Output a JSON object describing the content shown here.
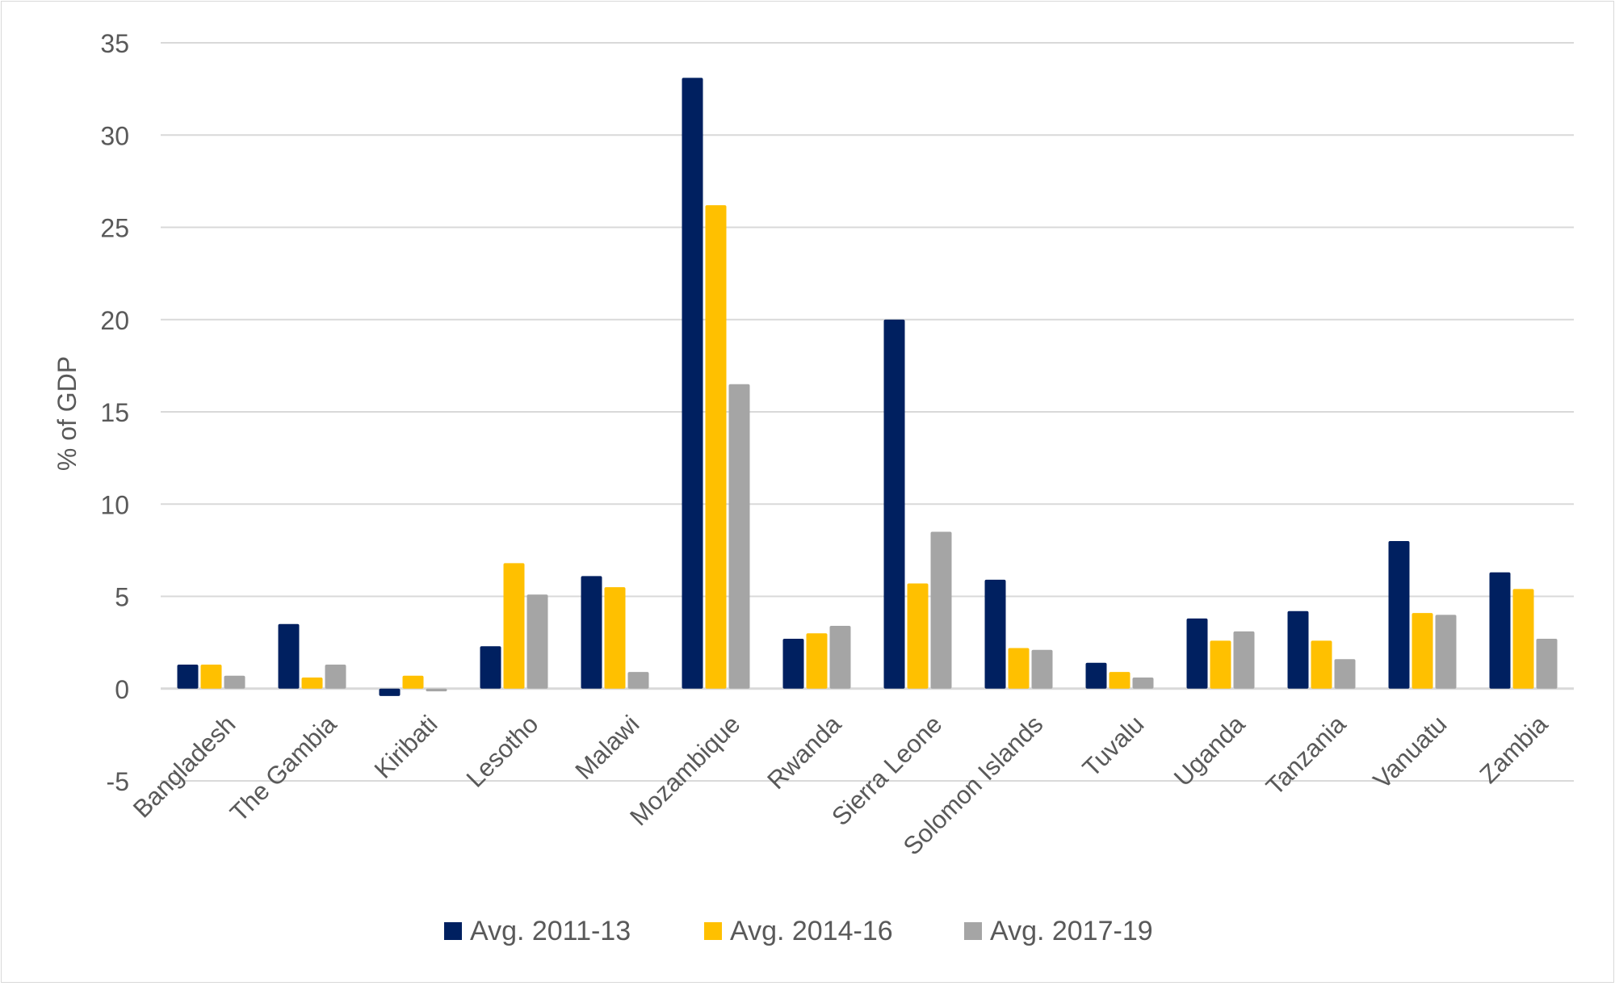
{
  "chart_data": {
    "type": "bar",
    "title": "",
    "xlabel": "",
    "ylabel": "% of GDP",
    "ylim": [
      -5,
      35
    ],
    "yticks": [
      -5,
      0,
      5,
      10,
      15,
      20,
      25,
      30,
      35
    ],
    "grid": true,
    "legend_position": "bottom",
    "categories": [
      "Bangladesh",
      "The Gambia",
      "Kiribati",
      "Lesotho",
      "Malawi",
      "Mozambique",
      "Rwanda",
      "Sierra Leone",
      "Solomon Islands",
      "Tuvalu",
      "Uganda",
      "Tanzania",
      "Vanuatu",
      "Zambia"
    ],
    "series": [
      {
        "name": "Avg. 2011-13",
        "color": "#002060",
        "values": [
          1.3,
          3.5,
          -0.4,
          2.3,
          6.1,
          33.1,
          2.7,
          20.0,
          5.9,
          1.4,
          3.8,
          4.2,
          8.0,
          6.3
        ]
      },
      {
        "name": "Avg. 2014-16",
        "color": "#FFC000",
        "values": [
          1.3,
          0.6,
          0.7,
          6.8,
          5.5,
          26.2,
          3.0,
          5.7,
          2.2,
          0.9,
          2.6,
          2.6,
          4.1,
          5.4
        ]
      },
      {
        "name": "Avg. 2017-19",
        "color": "#A5A5A5",
        "values": [
          0.7,
          1.3,
          -0.15,
          5.1,
          0.9,
          16.5,
          3.4,
          8.5,
          2.1,
          0.6,
          3.1,
          1.6,
          4.0,
          2.7
        ]
      }
    ]
  }
}
